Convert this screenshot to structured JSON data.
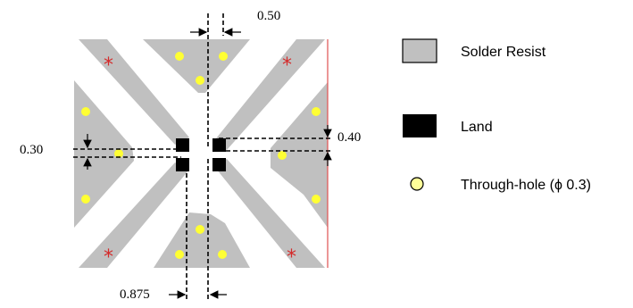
{
  "colors": {
    "solder_resist": "#c0c0c0",
    "land": "#000000",
    "through_hole": "#ffff33",
    "legend_hole_fill": "#ffff99",
    "star": "#d42a2a",
    "edge_line": "#e05050"
  },
  "dimensions": {
    "top_gap": "0.50",
    "left_gap": "0.30",
    "right_gap": "0.40",
    "bottom_gap": "0.875"
  },
  "legend": {
    "solder_resist": "Solder Resist",
    "land": "Land",
    "through_hole": "Through-hole (ϕ 0.3)"
  },
  "markers": {
    "star_symbol": "*"
  }
}
